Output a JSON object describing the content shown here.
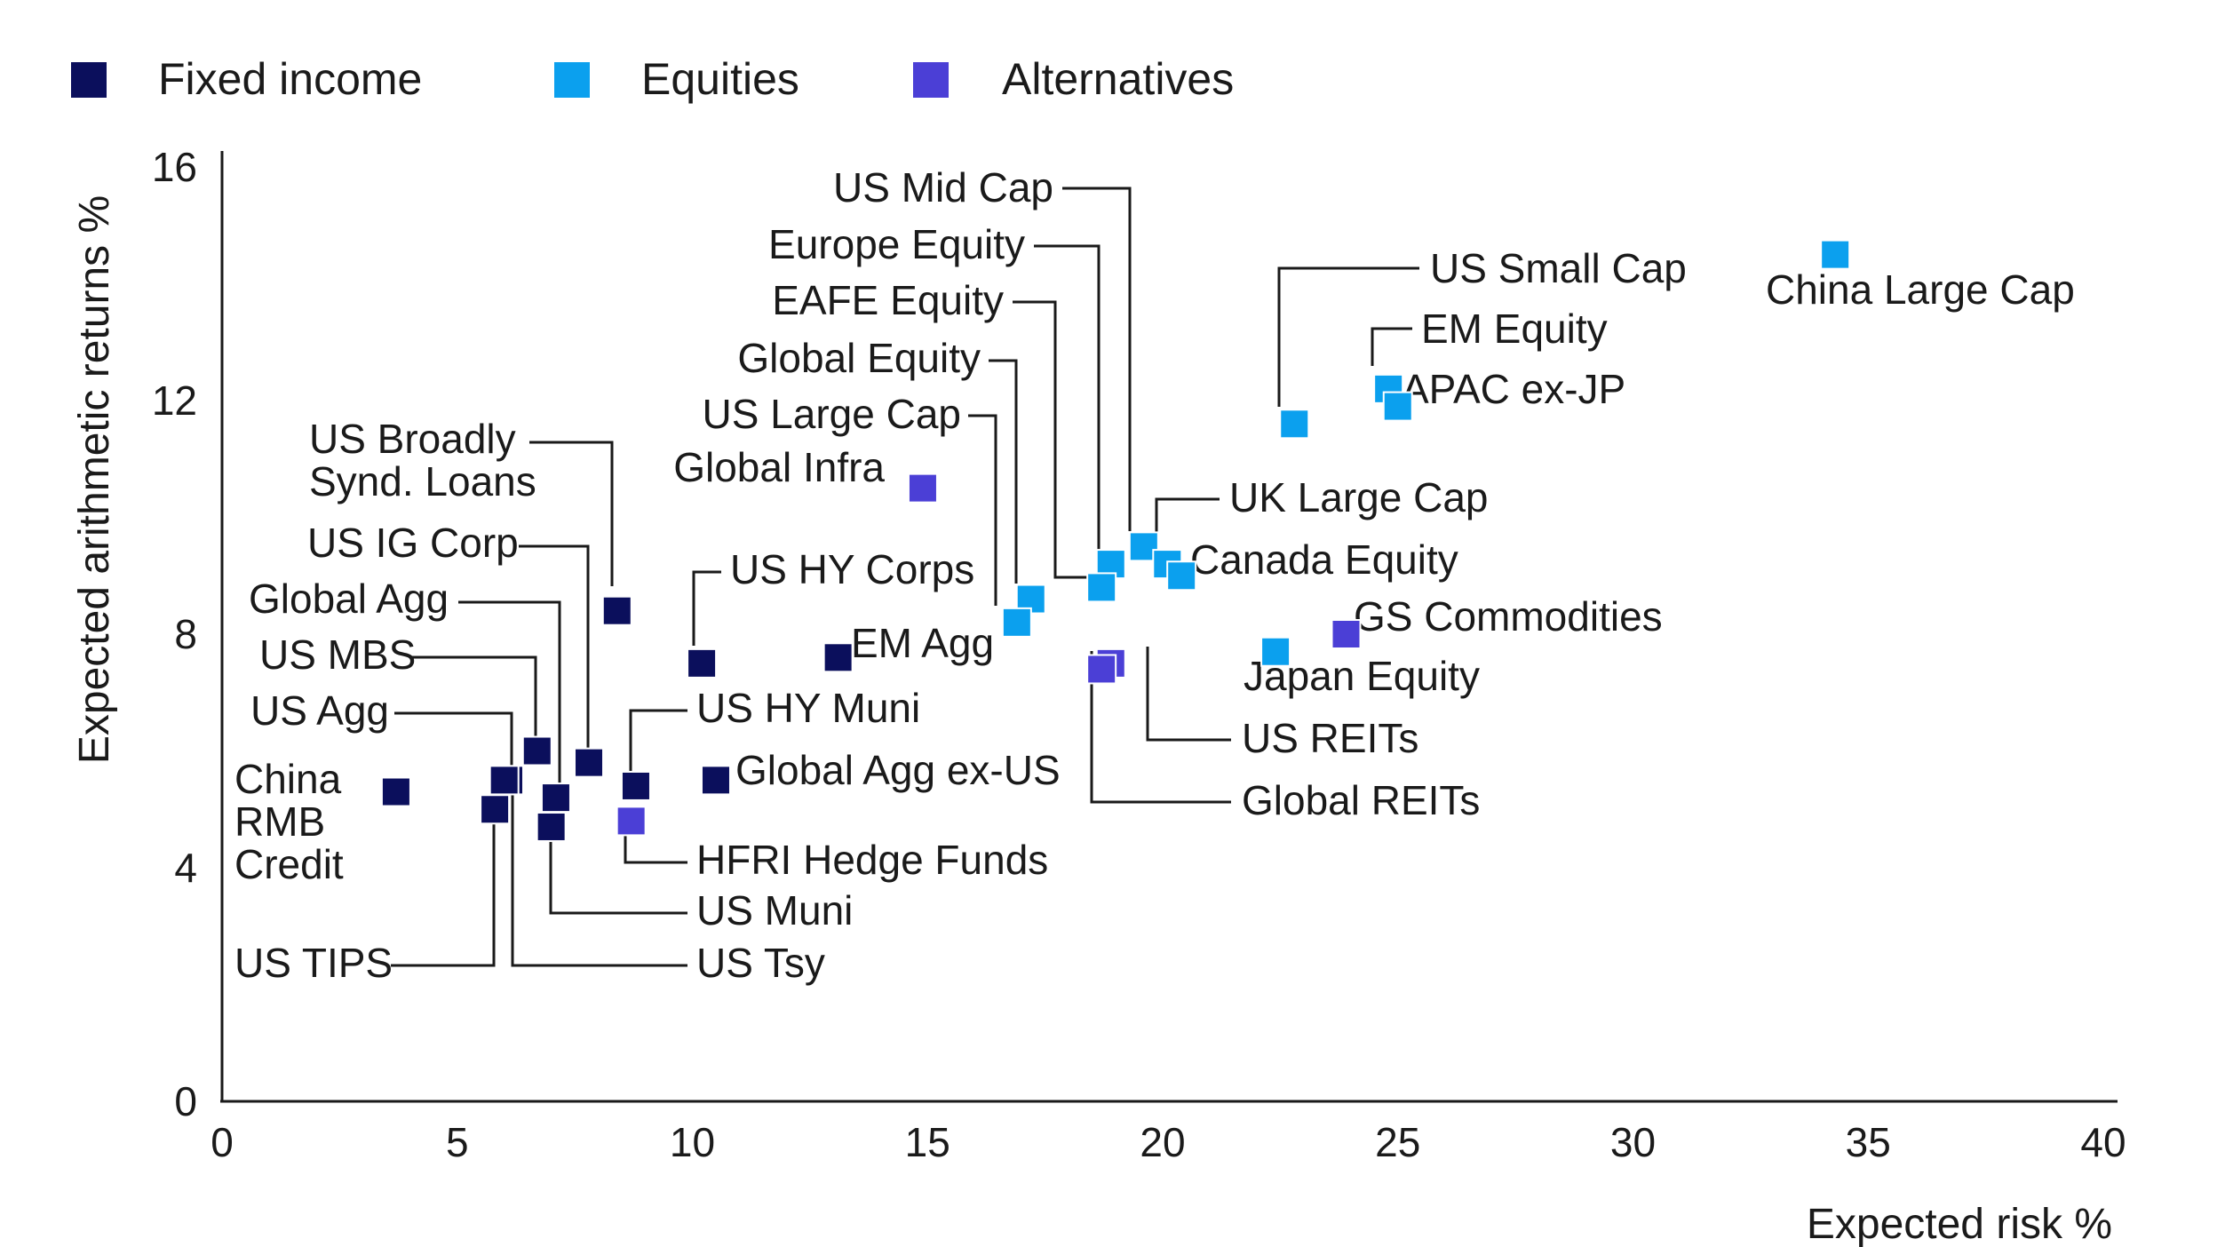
{
  "chart_data": {
    "type": "scatter",
    "xlabel": "Expected risk %",
    "ylabel": "Expected arithmetic returns %",
    "xlim": [
      0,
      40
    ],
    "ylim": [
      0,
      16
    ],
    "x_ticks": [
      "0",
      "5",
      "10",
      "15",
      "20",
      "25",
      "30",
      "35",
      "40"
    ],
    "y_ticks": [
      "0",
      "4",
      "8",
      "12",
      "16"
    ],
    "grid": false,
    "legend_position": "top-left",
    "series": [
      {
        "name": "Fixed income",
        "color": "#0b0f5c",
        "points": [
          {
            "label": "US Broadly Synd. Loans",
            "x": 8.4,
            "y": 8.4
          },
          {
            "label": "US IG Corp",
            "x": 7.8,
            "y": 5.8
          },
          {
            "label": "Global Agg",
            "x": 7.1,
            "y": 5.2
          },
          {
            "label": "US MBS",
            "x": 6.7,
            "y": 6.0
          },
          {
            "label": "US Agg",
            "x": 6.1,
            "y": 5.5
          },
          {
            "label": "China RMB Credit",
            "x": 3.7,
            "y": 5.3
          },
          {
            "label": "US TIPS",
            "x": 5.8,
            "y": 5.0
          },
          {
            "label": "US Tsy",
            "x": 6.0,
            "y": 5.5
          },
          {
            "label": "US Muni",
            "x": 7.0,
            "y": 4.7
          },
          {
            "label": "US HY Muni",
            "x": 8.8,
            "y": 5.4
          },
          {
            "label": "Global Agg ex-US",
            "x": 10.5,
            "y": 5.5
          },
          {
            "label": "US HY Corps",
            "x": 10.2,
            "y": 7.5
          },
          {
            "label": "EM Agg",
            "x": 13.1,
            "y": 7.6
          }
        ]
      },
      {
        "name": "Equities",
        "color": "#0ba0ee",
        "points": [
          {
            "label": "US Mid Cap",
            "x": 19.6,
            "y": 9.5
          },
          {
            "label": "Europe Equity",
            "x": 18.9,
            "y": 9.2
          },
          {
            "label": "EAFE Equity",
            "x": 18.7,
            "y": 8.8
          },
          {
            "label": "Global Equity",
            "x": 17.2,
            "y": 8.6
          },
          {
            "label": "US Large Cap",
            "x": 16.9,
            "y": 8.2
          },
          {
            "label": "US Small Cap",
            "x": 22.8,
            "y": 11.6
          },
          {
            "label": "EM Equity",
            "x": 24.8,
            "y": 12.2
          },
          {
            "label": "APAC ex-JP",
            "x": 25.0,
            "y": 11.9
          },
          {
            "label": "China Large Cap",
            "x": 34.3,
            "y": 14.5
          },
          {
            "label": "UK Large Cap",
            "x": 20.1,
            "y": 9.2
          },
          {
            "label": "Canada Equity",
            "x": 20.4,
            "y": 9.0
          },
          {
            "label": "Japan Equity",
            "x": 22.4,
            "y": 7.7
          }
        ]
      },
      {
        "name": "Alternatives",
        "color": "#4b3fd6",
        "points": [
          {
            "label": "Global Infra",
            "x": 14.9,
            "y": 10.5
          },
          {
            "label": "GS Commodities",
            "x": 23.9,
            "y": 8.0
          },
          {
            "label": "US REITs",
            "x": 18.9,
            "y": 7.5
          },
          {
            "label": "Global REITs",
            "x": 18.7,
            "y": 7.4
          },
          {
            "label": "HFRI Hedge Funds",
            "x": 8.7,
            "y": 4.8
          }
        ]
      }
    ]
  }
}
